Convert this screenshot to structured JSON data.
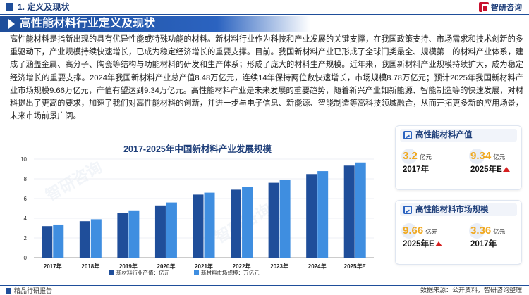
{
  "header": {
    "section_title": "1. 定义及现状",
    "brand": "智研咨询"
  },
  "banner": {
    "title": "高性能材料行业定义及现状"
  },
  "paragraph": "高性能材料是指新出现的具有优异性能或特殊功能的材料。新材料行业作为科技和产业发展的关键支撑，在我国政策支持、市场需求和技术创新的多重驱动下，产业规模持续快速增长，已成为稳定经济增长的重要支撑。目前。我国新材料产业已形成了全球门类最全、规模第一的材料产业体系，建成了涵盖金属、高分子、陶瓷等结构与功能材料的研发和生产体系；形成了庞大的材料生产规模。近年来，我国新材料产业规模持续扩大，成为稳定经济增长的重要支撑。2024年我国新材料产业总产值8.48万亿元，连续14年保持两位数快速增长，市场规模8.78万亿元；预计2025年我国新材料产业市场规模9.66万亿元，产值有望达到9.34万亿元。高性能材料产业是未来发展的重要趋势，随着新兴产业如新能源、智能制造等的快速发展，对材料提出了更高的要求，加速了我们对高性能材料的创新，并进一步与电子信息、新能源、智能制造等高科技领域融合，从而开拓更多新的应用场景，未来市场前景广阔。",
  "chart_data": {
    "type": "bar",
    "title": "2017-2025年中国新材料产业发展规模",
    "categories": [
      "2017年",
      "2018年",
      "2019年",
      "2020年",
      "2021年",
      "2022年",
      "2023年",
      "2024年",
      "2025年E"
    ],
    "series": [
      {
        "name": "新材料行业产值：亿元",
        "values": [
          3.2,
          3.7,
          4.5,
          5.3,
          6.4,
          6.9,
          7.6,
          8.48,
          9.34
        ],
        "color": "#1f4e9a"
      },
      {
        "name": "新材料市场规模：万亿元",
        "values": [
          3.36,
          3.9,
          4.8,
          5.6,
          6.6,
          7.2,
          7.9,
          8.78,
          9.66
        ],
        "color": "#3f8ee0"
      }
    ],
    "yticks": [
      0,
      2,
      4,
      6,
      8,
      10
    ],
    "ylim": [
      0,
      10
    ],
    "legend": "bottom"
  },
  "cards": {
    "output": {
      "title": "高性能材料产值",
      "left_value": "3.2",
      "left_unit": "亿元",
      "left_year": "2017年",
      "right_value": "9.34",
      "right_unit": "亿元",
      "right_year": "2025年E"
    },
    "market": {
      "title": "高性能材料市场规模",
      "left_value": "9.66",
      "left_unit": "亿元",
      "left_year": "2025年E",
      "right_value": "3.36",
      "right_unit": "亿元",
      "right_year": "2017年"
    }
  },
  "footer": {
    "left": "精品行研报告",
    "right": "数据来源：公开资料，智研咨询整理"
  }
}
